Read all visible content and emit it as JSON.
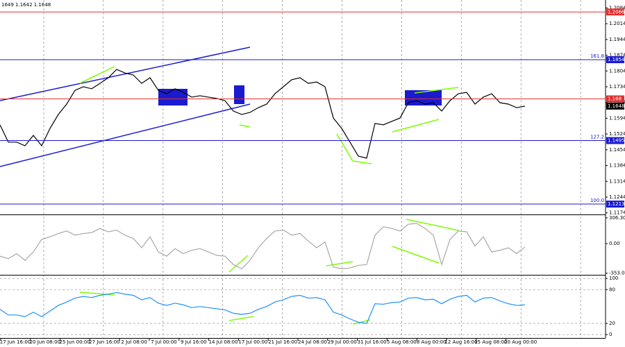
{
  "header": "1649 1.1642 1.1648",
  "chart_data": [
    {
      "type": "line",
      "name": "price",
      "values": [
        1.1565,
        1.1488,
        1.1488,
        1.1472,
        1.1518,
        1.1472,
        1.1549,
        1.1611,
        1.1657,
        1.1718,
        1.1734,
        1.1725,
        1.1749,
        1.1774,
        1.1811,
        1.1795,
        1.1786,
        1.1749,
        1.1774,
        1.1718,
        1.1703,
        1.1725,
        1.1709,
        1.1688,
        1.1694,
        1.1688,
        1.1682,
        1.1672,
        1.1626,
        1.1611,
        1.162,
        1.1641,
        1.1657,
        1.1703,
        1.1734,
        1.1765,
        1.1774,
        1.1749,
        1.1755,
        1.1734,
        1.1595,
        1.1549,
        1.1488,
        1.1426,
        1.1417,
        1.1571,
        1.1565,
        1.158,
        1.1595,
        1.1663,
        1.1672,
        1.1657,
        1.1663,
        1.1626,
        1.1672,
        1.1703,
        1.1709,
        1.1657,
        1.1688,
        1.1703,
        1.1663,
        1.1657,
        1.1641,
        1.1648
      ],
      "color": "#000000",
      "ylim": [
        1.117,
        1.2113
      ],
      "yticks": [
        1.2084,
        1.2014,
        1.1944,
        1.1874,
        1.1804,
        1.1734,
        1.1664,
        1.1594,
        1.1524,
        1.1454,
        1.1384,
        1.1314,
        1.1244,
        1.1174
      ],
      "levels": [
        {
          "value": 1.2066,
          "color": "#e03030"
        },
        {
          "value": 1.1854,
          "color": "#1a1ad0",
          "fib": "161.8"
        },
        {
          "value": 1.168,
          "color": "#e03030"
        },
        {
          "value": 1.1495,
          "color": "#1a1ad0",
          "fib": "127.2"
        },
        {
          "value": 1.1213,
          "color": "#1a1ad0",
          "fib": "100.0"
        }
      ],
      "current": 1.1648,
      "time_labels": [
        "17 Jun 16:00",
        "20 Jun 08:00",
        "25 Jun 00:00",
        "27 Jun 16:00",
        "2 Jul 08:00",
        "7 Jul 00:00",
        "9 Jul 16:00",
        "14 Jul 08:00",
        "17 Jul 00:00",
        "21 Jul 16:00",
        "24 Jul 08:00",
        "29 Jul 00:00",
        "31 Jul 16:00",
        "5 Aug 08:00",
        "8 Aug 00:00",
        "12 Aug 16:00",
        "15 Aug 08:00",
        "20 Aug 00:00"
      ]
    },
    {
      "type": "line",
      "name": "cci",
      "values": [
        -150,
        -180,
        -120,
        -200,
        -100,
        50,
        80,
        120,
        150,
        100,
        120,
        130,
        180,
        140,
        160,
        100,
        60,
        -50,
        80,
        -100,
        -150,
        -60,
        -120,
        -80,
        -60,
        -100,
        -140,
        -150,
        -250,
        -300,
        -200,
        -50,
        60,
        150,
        160,
        100,
        120,
        30,
        -50,
        20,
        -280,
        -300,
        -290,
        -260,
        -250,
        100,
        200,
        180,
        150,
        230,
        240,
        180,
        100,
        -250,
        50,
        150,
        140,
        -30,
        80,
        -100,
        -80,
        -50,
        -120,
        -40
      ],
      "color": "#a8a8a8",
      "ylim": [
        -364,
        330
      ],
      "yticks": [
        306.3051,
        {
          "value": 0,
          "label": "0.00"
        },
        -353.035
      ],
      "grid": false
    },
    {
      "type": "line",
      "name": "rsi",
      "values": [
        45,
        35,
        35,
        32,
        40,
        32,
        42,
        52,
        58,
        65,
        68,
        66,
        70,
        72,
        75,
        72,
        70,
        62,
        66,
        56,
        52,
        56,
        53,
        48,
        50,
        48,
        46,
        44,
        38,
        36,
        38,
        45,
        50,
        58,
        62,
        68,
        70,
        65,
        66,
        62,
        40,
        35,
        28,
        22,
        20,
        55,
        54,
        57,
        58,
        65,
        66,
        62,
        63,
        55,
        63,
        68,
        70,
        58,
        65,
        66,
        60,
        55,
        52,
        53
      ],
      "color": "#1e90ff",
      "ylim": [
        -6,
        104
      ],
      "yticks": [
        100,
        80,
        20,
        0
      ],
      "grid": true
    }
  ]
}
